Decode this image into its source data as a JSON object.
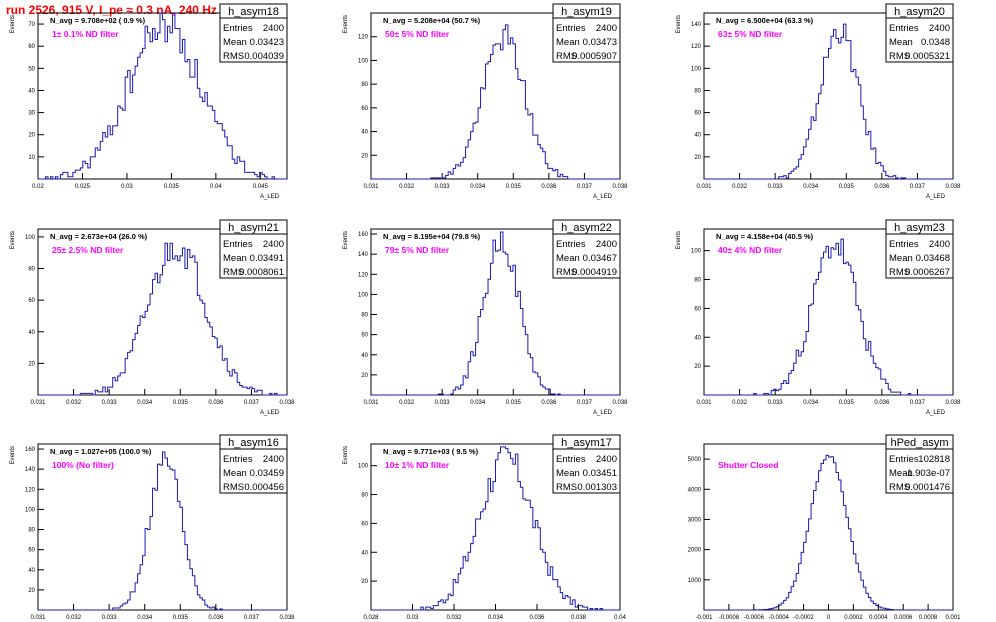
{
  "page_title": "run 2526,   915 V, I_pe ≈ 0.3 nA, 240 Hz",
  "styles": {
    "hist_color": "#1a1ab8",
    "filter_color": "#ff00ff",
    "title_color": "#ff0000",
    "frame_color": "#000000"
  },
  "chart_data": [
    {
      "type": "histogram",
      "name": "h_asym18",
      "xlabel": "A_LED",
      "ylabel": "Events",
      "nav": "N_avg = 9.708e+02 ( 0.9 %)",
      "filter": "1± 0.1% ND filter",
      "stats": {
        "entries": "2400",
        "mean": "0.03423",
        "rms": "0.004039"
      },
      "xlim": [
        0.02,
        0.048
      ],
      "ylim": [
        0,
        75
      ],
      "xticks": [
        0.02,
        0.025,
        0.03,
        0.035,
        0.04,
        0.045
      ],
      "xtick_labels": [
        "0.02",
        "0.025",
        "0.03",
        "0.035",
        "0.04",
        "0.045"
      ],
      "yticks": [
        10,
        20,
        30,
        40,
        50,
        60,
        70
      ],
      "bins": {
        "lo": 0.02,
        "hi": 0.048,
        "n": 100
      },
      "dist": {
        "mu": 0.03423,
        "sigma": 0.004039,
        "N": 2400,
        "peak": 70,
        "seed": 18
      }
    },
    {
      "type": "histogram",
      "name": "h_asym19",
      "xlabel": "A_LED",
      "ylabel": "Events",
      "nav": "N_avg = 5.208e+04 (50.7 %)",
      "filter": "50± 5% ND filter",
      "stats": {
        "entries": "2400",
        "mean": "0.03473",
        "rms": "0.0005907"
      },
      "xlim": [
        0.031,
        0.038
      ],
      "ylim": [
        0,
        140
      ],
      "xticks": [
        0.031,
        0.032,
        0.033,
        0.034,
        0.035,
        0.036,
        0.037,
        0.038
      ],
      "xtick_labels": [
        "0.031",
        "0.032",
        "0.033",
        "0.034",
        "0.035",
        "0.036",
        "0.037",
        "0.038"
      ],
      "yticks": [
        20,
        40,
        60,
        80,
        100,
        120
      ],
      "bins": {
        "lo": 0.031,
        "hi": 0.038,
        "n": 100
      },
      "dist": {
        "mu": 0.03473,
        "sigma": 0.0005907,
        "N": 2400,
        "peak": 120,
        "seed": 19
      }
    },
    {
      "type": "histogram",
      "name": "h_asym20",
      "xlabel": "A_LED",
      "ylabel": "Events",
      "nav": "N_avg = 6.500e+04 (63.3 %)",
      "filter": "63± 5% ND filter",
      "stats": {
        "entries": "2400",
        "mean": "0.0348",
        "rms": "0.0005321"
      },
      "xlim": [
        0.031,
        0.038
      ],
      "ylim": [
        0,
        150
      ],
      "xticks": [
        0.031,
        0.032,
        0.033,
        0.034,
        0.035,
        0.036,
        0.037,
        0.038
      ],
      "xtick_labels": [
        "0.031",
        "0.032",
        "0.033",
        "0.034",
        "0.035",
        "0.036",
        "0.037",
        "0.038"
      ],
      "yticks": [
        20,
        40,
        60,
        80,
        100,
        120,
        140
      ],
      "bins": {
        "lo": 0.031,
        "hi": 0.038,
        "n": 100
      },
      "dist": {
        "mu": 0.0348,
        "sigma": 0.0005321,
        "N": 2400,
        "peak": 135,
        "seed": 20
      }
    },
    {
      "type": "histogram",
      "name": "h_asym21",
      "xlabel": "A_LED",
      "ylabel": "Events",
      "nav": "N_avg = 2.673e+04 (26.0 %)",
      "filter": "25± 2.5% ND filter",
      "stats": {
        "entries": "2400",
        "mean": "0.03491",
        "rms": "0.0008061"
      },
      "xlim": [
        0.031,
        0.038
      ],
      "ylim": [
        0,
        105
      ],
      "xticks": [
        0.031,
        0.032,
        0.033,
        0.034,
        0.035,
        0.036,
        0.037,
        0.038
      ],
      "xtick_labels": [
        "0.031",
        "0.032",
        "0.033",
        "0.034",
        "0.035",
        "0.036",
        "0.037",
        "0.038"
      ],
      "yticks": [
        20,
        40,
        60,
        80,
        100
      ],
      "bins": {
        "lo": 0.031,
        "hi": 0.038,
        "n": 100
      },
      "dist": {
        "mu": 0.03491,
        "sigma": 0.0008061,
        "N": 2400,
        "peak": 95,
        "seed": 21
      }
    },
    {
      "type": "histogram",
      "name": "h_asym22",
      "xlabel": "A_LED",
      "ylabel": "Events",
      "nav": "N_avg = 8.195e+04 (79.8 %)",
      "filter": "79± 5% ND filter",
      "stats": {
        "entries": "2400",
        "mean": "0.03467",
        "rms": "0.0004919"
      },
      "xlim": [
        0.031,
        0.038
      ],
      "ylim": [
        0,
        165
      ],
      "xticks": [
        0.031,
        0.032,
        0.033,
        0.034,
        0.035,
        0.036,
        0.037,
        0.038
      ],
      "xtick_labels": [
        "0.031",
        "0.032",
        "0.033",
        "0.034",
        "0.035",
        "0.036",
        "0.037",
        "0.038"
      ],
      "yticks": [
        20,
        40,
        60,
        80,
        100,
        120,
        140,
        160
      ],
      "bins": {
        "lo": 0.031,
        "hi": 0.038,
        "n": 100
      },
      "dist": {
        "mu": 0.03467,
        "sigma": 0.0004919,
        "N": 2400,
        "peak": 155,
        "seed": 22
      }
    },
    {
      "type": "histogram",
      "name": "h_asym23",
      "xlabel": "A_LED",
      "ylabel": "Events",
      "nav": "N_avg = 4.158e+04 (40.5 %)",
      "filter": "40± 4% ND filter",
      "stats": {
        "entries": "2400",
        "mean": "0.03468",
        "rms": "0.0006267"
      },
      "xlim": [
        0.031,
        0.038
      ],
      "ylim": [
        0,
        115
      ],
      "xticks": [
        0.031,
        0.032,
        0.033,
        0.034,
        0.035,
        0.036,
        0.037,
        0.038
      ],
      "xtick_labels": [
        "0.031",
        "0.032",
        "0.033",
        "0.034",
        "0.035",
        "0.036",
        "0.037",
        "0.038"
      ],
      "yticks": [
        20,
        40,
        60,
        80,
        100
      ],
      "bins": {
        "lo": 0.031,
        "hi": 0.038,
        "n": 100
      },
      "dist": {
        "mu": 0.03468,
        "sigma": 0.0006267,
        "N": 2400,
        "peak": 105,
        "seed": 23
      }
    },
    {
      "type": "histogram",
      "name": "h_asym16",
      "xlabel": "A_LED",
      "ylabel": "Events",
      "nav": "N_avg = 1.027e+05 (100.0 %)",
      "filter": "100% (No filter)",
      "stats": {
        "entries": "2400",
        "mean": "0.03459",
        "rms": "0.000456"
      },
      "xlim": [
        0.031,
        0.038
      ],
      "ylim": [
        0,
        165
      ],
      "xticks": [
        0.031,
        0.032,
        0.033,
        0.034,
        0.035,
        0.036,
        0.037,
        0.038
      ],
      "xtick_labels": [
        "0.031",
        "0.032",
        "0.033",
        "0.034",
        "0.035",
        "0.036",
        "0.037",
        "0.038"
      ],
      "yticks": [
        20,
        40,
        60,
        80,
        100,
        120,
        140,
        160
      ],
      "bins": {
        "lo": 0.031,
        "hi": 0.038,
        "n": 100
      },
      "dist": {
        "mu": 0.03459,
        "sigma": 0.000456,
        "N": 2400,
        "peak": 150,
        "seed": 16
      }
    },
    {
      "type": "histogram",
      "name": "h_asym17",
      "xlabel": "A_LED",
      "ylabel": "Events",
      "nav": "N_avg = 9.771e+03 ( 9.5 %)",
      "filter": "10± 1% ND filter",
      "stats": {
        "entries": "2400",
        "mean": "0.03451",
        "rms": "0.001303"
      },
      "xlim": [
        0.028,
        0.04
      ],
      "ylim": [
        0,
        115
      ],
      "xticks": [
        0.028,
        0.03,
        0.032,
        0.034,
        0.036,
        0.038,
        0.04
      ],
      "xtick_labels": [
        "0.028",
        "0.03",
        "0.032",
        "0.034",
        "0.036",
        "0.038",
        "0.04"
      ],
      "yticks": [
        20,
        40,
        60,
        80,
        100
      ],
      "bins": {
        "lo": 0.028,
        "hi": 0.04,
        "n": 100
      },
      "dist": {
        "mu": 0.03451,
        "sigma": 0.001303,
        "N": 2400,
        "peak": 105,
        "seed": 17
      }
    },
    {
      "type": "histogram",
      "name": "hPed_asym",
      "xlabel": "A_LED",
      "ylabel": "",
      "nav": "",
      "filter": "Shutter Closed",
      "stats": {
        "entries": "102818",
        "mean": "-1.903e-07",
        "rms": "0.0001476"
      },
      "xlim": [
        -0.001,
        0.001
      ],
      "ylim": [
        0,
        5500
      ],
      "xticks": [
        -0.001,
        -0.0008,
        -0.0006,
        -0.0004,
        -0.0002,
        0,
        0.0002,
        0.0004,
        0.0006,
        0.0008,
        0.001
      ],
      "xtick_labels": [
        "-0.001",
        "-0.0008",
        "-0.0006",
        "-0.0004",
        "-0.0002",
        "0",
        "0.0002",
        "0.0004",
        "0.0006",
        "0.0008",
        "0.001"
      ],
      "yticks": [
        1000,
        2000,
        3000,
        4000,
        5000
      ],
      "bins": {
        "lo": -0.001,
        "hi": 0.001,
        "n": 100
      },
      "dist": {
        "mu": 0,
        "sigma": 0.0001476,
        "N": 102818,
        "peak": 5150,
        "seed": 99
      }
    }
  ]
}
